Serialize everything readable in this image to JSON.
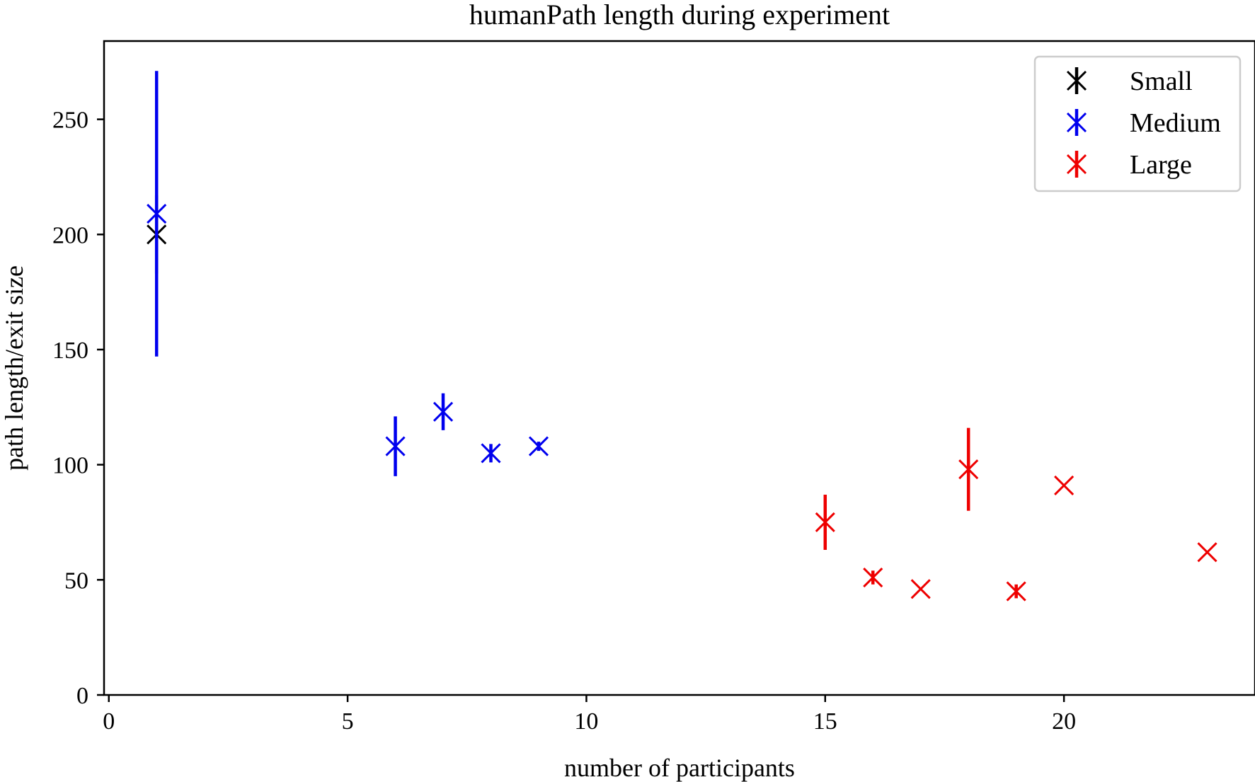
{
  "chart_data": {
    "type": "scatter",
    "title": "humanPath length during experiment",
    "xlabel": "number of participants",
    "ylabel": "path length/exit size",
    "xlim": [
      -0.1,
      24
    ],
    "ylim": [
      0,
      284
    ],
    "xticks": [
      "0",
      "5",
      "10",
      "15",
      "20"
    ],
    "xtick_values": [
      0,
      5,
      10,
      15,
      20
    ],
    "yticks": [
      "0",
      "50",
      "100",
      "150",
      "200",
      "250"
    ],
    "ytick_values": [
      0,
      50,
      100,
      150,
      200,
      250
    ],
    "grid": false,
    "legend_position": "top-right",
    "marker": "x",
    "series": [
      {
        "name": "Small",
        "color": "#000000",
        "points": [
          {
            "x": 1,
            "y": 200,
            "err": 17
          }
        ]
      },
      {
        "name": "Medium",
        "color": "#0000ee",
        "points": [
          {
            "x": 1,
            "y": 209,
            "err": 62
          },
          {
            "x": 6,
            "y": 108,
            "err": 13
          },
          {
            "x": 7,
            "y": 123,
            "err": 8
          },
          {
            "x": 8,
            "y": 105,
            "err": 4
          },
          {
            "x": 9,
            "y": 108,
            "err": 2
          }
        ]
      },
      {
        "name": "Large",
        "color": "#ee0000",
        "points": [
          {
            "x": 15,
            "y": 75,
            "err": 12
          },
          {
            "x": 16,
            "y": 51,
            "err": 3
          },
          {
            "x": 17,
            "y": 46,
            "err": 0
          },
          {
            "x": 18,
            "y": 98,
            "err": 18
          },
          {
            "x": 19,
            "y": 45,
            "err": 3
          },
          {
            "x": 20,
            "y": 91,
            "err": 0
          },
          {
            "x": 23,
            "y": 62,
            "err": 0
          }
        ]
      }
    ]
  }
}
